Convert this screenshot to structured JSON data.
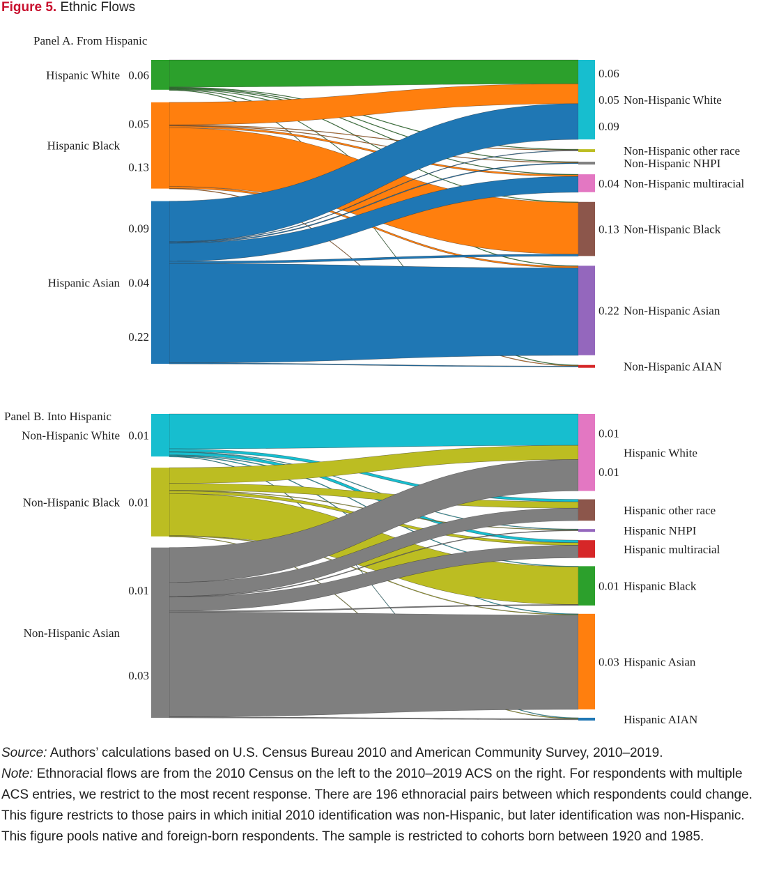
{
  "figure": {
    "label": "Figure 5.",
    "title": "Ethnic Flows"
  },
  "notes": {
    "source_label": "Source:",
    "source_text": "Authors’ calculations based on U.S. Census Bureau 2010 and American Community Survey, 2010–2019.",
    "note_label": "Note:",
    "note_text": "Ethnoracial flows are from the 2010 Census on the left to the 2010–2019 ACS on the right. For respondents with multiple ACS entries, we restrict to the most recent response. There are 196 ethnoracial pairs between which respondents could change. This figure restricts to those pairs in which initial 2010 identification was non-Hispanic, but later identification was non-Hispanic. This figure pools native and foreign-born respondents. The sample is restricted to cohorts born between 1920 and 1985."
  },
  "chart_data": [
    {
      "type": "sankey",
      "title": "Panel A. From Hispanic",
      "sources": [
        {
          "name": "Hispanic White",
          "color": "#2ca02c",
          "labels": [
            "0.06"
          ]
        },
        {
          "name": "Hispanic Black",
          "color": "#ff7f0e",
          "labels": [
            "0.05",
            "0.13"
          ]
        },
        {
          "name": "Hispanic Asian",
          "color": "#1f77b4",
          "labels": [
            "0.09",
            "0.04",
            "0.22"
          ]
        }
      ],
      "targets": [
        {
          "name": "Non-Hispanic White",
          "color": "#17becf",
          "labels": [
            "0.06",
            "0.05",
            "0.09"
          ]
        },
        {
          "name": "Non-Hispanic other race",
          "color": "#bcbd22",
          "labels": []
        },
        {
          "name": "Non-Hispanic NHPI",
          "color": "#7f7f7f",
          "labels": []
        },
        {
          "name": "Non-Hispanic multiracial",
          "color": "#e377c2",
          "labels": [
            "0.04"
          ]
        },
        {
          "name": "Non-Hispanic Black",
          "color": "#8c564b",
          "labels": [
            "0.13"
          ]
        },
        {
          "name": "Non-Hispanic Asian",
          "color": "#9467bd",
          "labels": [
            "0.22"
          ]
        },
        {
          "name": "Non-Hispanic AIAN",
          "color": "#d62728",
          "labels": []
        }
      ],
      "flows": [
        {
          "from": "Hispanic White",
          "to": "Non-Hispanic White",
          "value": 0.06
        },
        {
          "from": "Hispanic White",
          "to": "Non-Hispanic other race",
          "value": 0.001
        },
        {
          "from": "Hispanic White",
          "to": "Non-Hispanic NHPI",
          "value": 0.001
        },
        {
          "from": "Hispanic White",
          "to": "Non-Hispanic multiracial",
          "value": 0.001
        },
        {
          "from": "Hispanic White",
          "to": "Non-Hispanic Black",
          "value": 0.001
        },
        {
          "from": "Hispanic White",
          "to": "Non-Hispanic Asian",
          "value": 0.001
        },
        {
          "from": "Hispanic White",
          "to": "Non-Hispanic AIAN",
          "value": 0.001
        },
        {
          "from": "Hispanic Black",
          "to": "Non-Hispanic White",
          "value": 0.05
        },
        {
          "from": "Hispanic Black",
          "to": "Non-Hispanic other race",
          "value": 0.001
        },
        {
          "from": "Hispanic Black",
          "to": "Non-Hispanic NHPI",
          "value": 0.001
        },
        {
          "from": "Hispanic Black",
          "to": "Non-Hispanic multiracial",
          "value": 0.004
        },
        {
          "from": "Hispanic Black",
          "to": "Non-Hispanic Black",
          "value": 0.13
        },
        {
          "from": "Hispanic Black",
          "to": "Non-Hispanic Asian",
          "value": 0.004
        },
        {
          "from": "Hispanic Black",
          "to": "Non-Hispanic AIAN",
          "value": 0.001
        },
        {
          "from": "Hispanic Asian",
          "to": "Non-Hispanic White",
          "value": 0.09
        },
        {
          "from": "Hispanic Asian",
          "to": "Non-Hispanic other race",
          "value": 0.001
        },
        {
          "from": "Hispanic Asian",
          "to": "Non-Hispanic NHPI",
          "value": 0.002
        },
        {
          "from": "Hispanic Asian",
          "to": "Non-Hispanic multiracial",
          "value": 0.04
        },
        {
          "from": "Hispanic Asian",
          "to": "Non-Hispanic Black",
          "value": 0.005
        },
        {
          "from": "Hispanic Asian",
          "to": "Non-Hispanic Asian",
          "value": 0.22
        },
        {
          "from": "Hispanic Asian",
          "to": "Non-Hispanic AIAN",
          "value": 0.002
        }
      ]
    },
    {
      "type": "sankey",
      "title": "Panel B. Into Hispanic",
      "sources": [
        {
          "name": "Non-Hispanic White",
          "color": "#17becf",
          "labels": [
            "0.01"
          ]
        },
        {
          "name": "Non-Hispanic Black",
          "color": "#bcbd22",
          "labels": [
            "0.01"
          ]
        },
        {
          "name": "Non-Hispanic Asian",
          "color": "#7f7f7f",
          "labels": [
            "0.01",
            "0.03"
          ]
        }
      ],
      "targets": [
        {
          "name": "Hispanic White",
          "color": "#e377c2",
          "labels": [
            "0.01",
            "0.01"
          ]
        },
        {
          "name": "Hispanic other race",
          "color": "#8c564b",
          "labels": []
        },
        {
          "name": "Hispanic NHPI",
          "color": "#9467bd",
          "labels": []
        },
        {
          "name": "Hispanic multiracial",
          "color": "#d62728",
          "labels": []
        },
        {
          "name": "Hispanic Black",
          "color": "#2ca02c",
          "labels": [
            "0.01"
          ]
        },
        {
          "name": "Hispanic Asian",
          "color": "#ff7f0e",
          "labels": [
            "0.03"
          ]
        },
        {
          "name": "Hispanic AIAN",
          "color": "#1f77b4",
          "labels": []
        }
      ],
      "flows": [
        {
          "from": "Non-Hispanic White",
          "to": "Hispanic White",
          "value": 0.01
        },
        {
          "from": "Non-Hispanic White",
          "to": "Hispanic other race",
          "value": 0.0008
        },
        {
          "from": "Non-Hispanic White",
          "to": "Hispanic NHPI",
          "value": 0.0001
        },
        {
          "from": "Non-Hispanic White",
          "to": "Hispanic multiracial",
          "value": 0.0008
        },
        {
          "from": "Non-Hispanic White",
          "to": "Hispanic Black",
          "value": 0.0002
        },
        {
          "from": "Non-Hispanic White",
          "to": "Hispanic Asian",
          "value": 0.0002
        },
        {
          "from": "Non-Hispanic White",
          "to": "Hispanic AIAN",
          "value": 0.0001
        },
        {
          "from": "Non-Hispanic Black",
          "to": "Hispanic White",
          "value": 0.0045
        },
        {
          "from": "Non-Hispanic Black",
          "to": "Hispanic other race",
          "value": 0.002
        },
        {
          "from": "Non-Hispanic Black",
          "to": "Hispanic NHPI",
          "value": 0.0001
        },
        {
          "from": "Non-Hispanic Black",
          "to": "Hispanic multiracial",
          "value": 0.0008
        },
        {
          "from": "Non-Hispanic Black",
          "to": "Hispanic Black",
          "value": 0.012
        },
        {
          "from": "Non-Hispanic Black",
          "to": "Hispanic Asian",
          "value": 0.0002
        },
        {
          "from": "Non-Hispanic Black",
          "to": "Hispanic AIAN",
          "value": 0.0001
        },
        {
          "from": "Non-Hispanic Asian",
          "to": "Hispanic White",
          "value": 0.01
        },
        {
          "from": "Non-Hispanic Asian",
          "to": "Hispanic other race",
          "value": 0.004
        },
        {
          "from": "Non-Hispanic Asian",
          "to": "Hispanic NHPI",
          "value": 0.0002
        },
        {
          "from": "Non-Hispanic Asian",
          "to": "Hispanic multiracial",
          "value": 0.004
        },
        {
          "from": "Non-Hispanic Asian",
          "to": "Hispanic Black",
          "value": 0.0003
        },
        {
          "from": "Non-Hispanic Asian",
          "to": "Hispanic Asian",
          "value": 0.03
        },
        {
          "from": "Non-Hispanic Asian",
          "to": "Hispanic AIAN",
          "value": 0.0003
        }
      ]
    }
  ]
}
